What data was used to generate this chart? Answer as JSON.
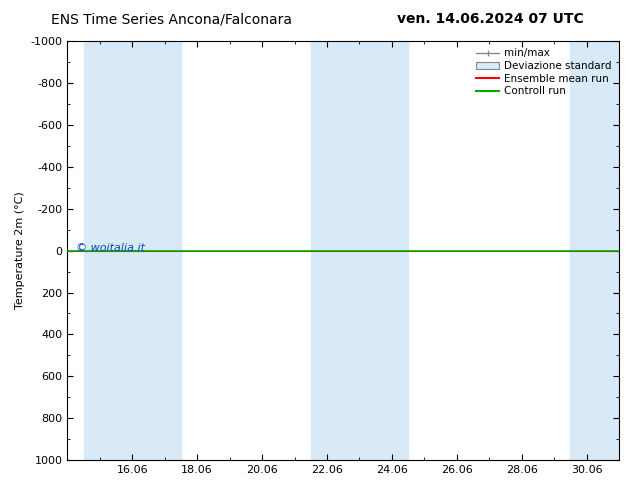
{
  "title_left": "ENS Time Series Ancona/Falconara",
  "title_right": "ven. 14.06.2024 07 UTC",
  "ylabel": "Temperature 2m (°C)",
  "watermark": "© woitalia.it",
  "ylim_bottom": 1000,
  "ylim_top": -1000,
  "xlim_start": 14.0,
  "xlim_end": 31.0,
  "xtick_positions": [
    16,
    18,
    20,
    22,
    24,
    26,
    28,
    30
  ],
  "xtick_labels": [
    "16.06",
    "18.06",
    "20.06",
    "22.06",
    "24.06",
    "26.06",
    "28.06",
    "30.06"
  ],
  "yticks": [
    -1000,
    -800,
    -600,
    -400,
    -200,
    0,
    200,
    400,
    600,
    800,
    1000
  ],
  "shaded_bands": [
    [
      14.0,
      15.0
    ],
    [
      15.0,
      17.0
    ],
    [
      21.0,
      22.0
    ],
    [
      22.0,
      24.0
    ],
    [
      29.0,
      31.0
    ]
  ],
  "band_colors": [
    "#ddeef8",
    "#ddeef8",
    "#ddeef8",
    "#ddeef8",
    "#ddeef8"
  ],
  "line_y": 0,
  "green_line_color": "#00aa00",
  "red_line_color": "#ff0000",
  "background_color": "#ffffff",
  "plot_bg_color": "#ffffff",
  "legend_entries": [
    "min/max",
    "Deviazione standard",
    "Ensemble mean run",
    "Controll run"
  ],
  "title_fontsize": 10,
  "axis_label_fontsize": 8,
  "tick_fontsize": 8,
  "legend_fontsize": 7.5,
  "watermark_color": "#0044cc",
  "watermark_fontsize": 8
}
